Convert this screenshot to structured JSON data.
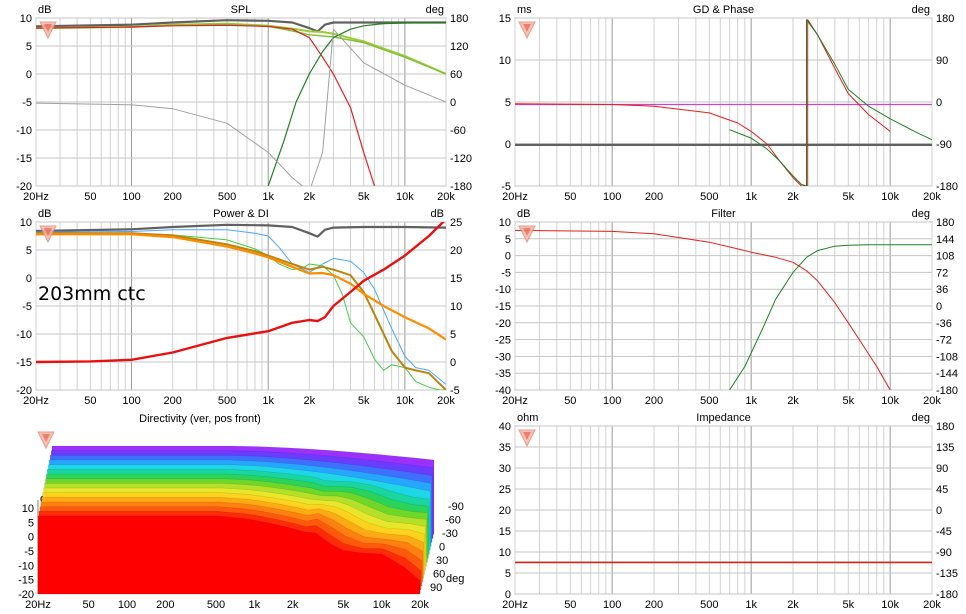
{
  "chart_data": [
    {
      "id": "spl",
      "type": "line",
      "title": "SPL",
      "ylabel": "dB",
      "y2label": "deg",
      "xscale": "log",
      "xlim": [
        20,
        20000
      ],
      "ylim": [
        -20,
        10
      ],
      "y2lim": [
        -180,
        180
      ],
      "xticks": [
        "20Hz",
        "50",
        "100",
        "200",
        "500",
        "1k",
        "2k",
        "5k",
        "10k",
        "20k"
      ],
      "yticks": [
        "10",
        "5",
        "0",
        "-5",
        "-10",
        "-15",
        "-20"
      ],
      "y2ticks": [
        "180",
        "120",
        "60",
        "0",
        "-60",
        "-120",
        "-180"
      ],
      "series": [
        {
          "color": "#606060",
          "width": 2.2,
          "x": [
            20,
            100,
            200,
            500,
            1000,
            1500,
            2000,
            2300,
            2600,
            3000,
            5000,
            10000,
            20000
          ],
          "y": [
            8.5,
            8.8,
            9.2,
            9.6,
            9.5,
            9.2,
            8.2,
            7.6,
            8.8,
            9.2,
            9.2,
            9.2,
            9.2
          ]
        },
        {
          "color": "#9acd32",
          "width": 2.0,
          "x": [
            20,
            100,
            200,
            500,
            1000,
            1500,
            2000,
            2500,
            3000,
            5000,
            10000,
            20000
          ],
          "y": [
            8.2,
            8.4,
            8.8,
            9.0,
            8.6,
            8.1,
            7.6,
            7.5,
            7.2,
            5.8,
            3.2,
            0
          ]
        },
        {
          "color": "#7fbf3a",
          "width": 1.4,
          "x": [
            20,
            100,
            200,
            500,
            1000,
            1300,
            1700,
            2000,
            2500,
            3000,
            5000,
            10000,
            20000
          ],
          "y": [
            8.2,
            8.4,
            8.7,
            8.9,
            8.5,
            8.0,
            7.4,
            7.0,
            6.8,
            6.6,
            5.6,
            3.0,
            0
          ]
        },
        {
          "color": "#e02020",
          "width": 1.2,
          "x": [
            20,
            100,
            200,
            500,
            1000,
            1500,
            2000,
            2500,
            3000,
            4000,
            5000,
            6000
          ],
          "y": [
            8.2,
            8.4,
            8.6,
            8.7,
            8.5,
            8.0,
            6.5,
            3.0,
            0,
            -6,
            -14,
            -20
          ]
        },
        {
          "color": "#208020",
          "width": 1.2,
          "x": [
            1000,
            1300,
            1600,
            2000,
            2500,
            3000,
            4000,
            5000,
            7000,
            10000,
            20000
          ],
          "y": [
            -20,
            -12,
            -5,
            0,
            4,
            6.5,
            8.0,
            8.6,
            9.0,
            9.1,
            9.2
          ]
        },
        {
          "color": "#a0a0a0",
          "width": 1.0,
          "x": [
            20,
            100,
            200,
            500,
            1000,
            1500,
            2000,
            2500,
            3000,
            5000,
            10000,
            20000
          ],
          "y": [
            -5.2,
            -5.5,
            -6.2,
            -8.8,
            -14,
            -18.5,
            -21,
            -14,
            8,
            2,
            -2,
            -5
          ]
        }
      ]
    },
    {
      "id": "power_di",
      "type": "line",
      "title": "Power & DI",
      "ylabel": "dB",
      "y2label": "dB",
      "xscale": "log",
      "xlim": [
        20,
        20000
      ],
      "ylim": [
        -20,
        10
      ],
      "y2lim": [
        -5,
        25
      ],
      "xticks": [
        "20Hz",
        "50",
        "100",
        "200",
        "500",
        "1k",
        "2k",
        "5k",
        "10k",
        "20k"
      ],
      "yticks": [
        "10",
        "5",
        "0",
        "-5",
        "-10",
        "-15",
        "-20"
      ],
      "y2ticks": [
        "25",
        "20",
        "15",
        "10",
        "5",
        "0",
        "-5"
      ],
      "series": [
        {
          "color": "#606060",
          "width": 2.2,
          "x": [
            20,
            100,
            200,
            500,
            1000,
            1500,
            2000,
            2300,
            2600,
            3000,
            5000,
            10000,
            20000
          ],
          "y": [
            8.4,
            8.7,
            9.1,
            9.5,
            9.4,
            9.1,
            8.0,
            7.4,
            8.6,
            9.0,
            9.1,
            9.1,
            9.0
          ]
        },
        {
          "color": "#4da6ff",
          "width": 1.0,
          "x": [
            20,
            100,
            200,
            500,
            800,
            1000,
            1200,
            1500,
            2000,
            2500,
            3000,
            4000,
            5000,
            6000,
            8000,
            10000,
            12000,
            15000,
            20000
          ],
          "y": [
            8.2,
            8.3,
            8.6,
            8.6,
            8.0,
            7.5,
            5.5,
            2.5,
            1.0,
            2.5,
            3.5,
            3.0,
            1.0,
            -2.0,
            -9.0,
            -14.0,
            -16.0,
            -16.5,
            -19.0
          ]
        },
        {
          "color": "#44cc44",
          "width": 1.0,
          "x": [
            20,
            100,
            200,
            500,
            800,
            1000,
            1200,
            1500,
            1800,
            2000,
            2500,
            3000,
            3500,
            4000,
            5000,
            6000,
            7000,
            8000,
            10000,
            12000,
            15000,
            18000,
            20000
          ],
          "y": [
            8.0,
            8.0,
            7.7,
            6.8,
            5.2,
            4.0,
            2.5,
            1.5,
            1.8,
            2.5,
            2.2,
            0.5,
            -3.0,
            -8.0,
            -10.5,
            -14.5,
            -16.5,
            -15.5,
            -16.0,
            -18.5,
            -19.5,
            -20,
            -20
          ]
        },
        {
          "color": "#b8860b",
          "width": 2.0,
          "x": [
            20,
            100,
            200,
            500,
            800,
            1000,
            1500,
            2000,
            2500,
            3000,
            4000,
            5000,
            6000,
            8000,
            10000,
            12000,
            15000,
            20000
          ],
          "y": [
            8.0,
            8.0,
            7.6,
            6.0,
            4.8,
            4.0,
            2.5,
            1.5,
            2.0,
            1.5,
            0.5,
            -2.5,
            -6.5,
            -13.0,
            -16.0,
            -16.5,
            -17.0,
            -20
          ]
        },
        {
          "color": "#ff8c00",
          "width": 2.2,
          "x": [
            20,
            100,
            200,
            500,
            800,
            1000,
            1500,
            2000,
            2500,
            3000,
            4000,
            5000,
            7000,
            10000,
            15000,
            20000
          ],
          "y": [
            7.8,
            7.8,
            7.3,
            5.6,
            4.4,
            3.7,
            2.0,
            0.8,
            0.9,
            0.5,
            -1.0,
            -2.8,
            -5.0,
            -7.0,
            -9.0,
            -11.0
          ]
        },
        {
          "color": "#e81010",
          "width": 2.4,
          "x": [
            20,
            50,
            100,
            200,
            500,
            1000,
            1500,
            2000,
            2300,
            2600,
            3000,
            4000,
            5000,
            7000,
            10000,
            15000,
            20000
          ],
          "y": [
            -15.0,
            -14.9,
            -14.6,
            -13.3,
            -10.7,
            -9.5,
            -8.0,
            -7.5,
            -7.7,
            -7.0,
            -5.0,
            -2.5,
            -0.5,
            1.5,
            4.0,
            7.5,
            10.5
          ]
        }
      ]
    },
    {
      "id": "gd_phase",
      "type": "line",
      "title": "GD & Phase",
      "ylabel": "ms",
      "y2label": "deg",
      "xscale": "log",
      "xlim": [
        20,
        20000
      ],
      "ylim": [
        -5,
        15
      ],
      "y2lim": [
        -180,
        180
      ],
      "xticks": [
        "20Hz",
        "50",
        "100",
        "200",
        "500",
        "1k",
        "2k",
        "5k",
        "10k",
        "20k"
      ],
      "yticks": [
        "15",
        "10",
        "5",
        "0",
        "-5"
      ],
      "y2ticks": [
        "180",
        "90",
        "0",
        "-90",
        "-180"
      ],
      "series": [
        {
          "color": "#606060",
          "width": 2.4,
          "x": [
            20,
            100,
            500,
            1000,
            2000,
            5000,
            20000
          ],
          "y": [
            -0.1,
            -0.1,
            -0.1,
            -0.1,
            -0.1,
            -0.1,
            -0.1
          ]
        },
        {
          "color": "#cc44cc",
          "width": 1.2,
          "x": [
            20,
            20000
          ],
          "y": [
            4.7,
            4.7
          ]
        },
        {
          "color": "#e02020",
          "width": 1.0,
          "x": [
            20,
            100,
            200,
            500,
            800,
            1000,
            1300,
            1600,
            2000,
            2300,
            2550,
            2551,
            3000,
            4000,
            5000,
            7000,
            10000
          ],
          "y": [
            4.8,
            4.7,
            4.5,
            3.7,
            2.5,
            1.5,
            0,
            -2.0,
            -4.0,
            -5.0,
            -5.0,
            14.8,
            13.0,
            9.0,
            6.0,
            3.5,
            1.5
          ]
        },
        {
          "color": "#208020",
          "width": 1.0,
          "x": [
            700,
            1000,
            1300,
            1600,
            2000,
            2300,
            2500,
            2501,
            3000,
            4000,
            5000,
            7000,
            10000,
            15000,
            20000
          ],
          "y": [
            1.7,
            0.7,
            -0.6,
            -2.0,
            -3.8,
            -4.8,
            -5.0,
            14.8,
            13.0,
            9.5,
            6.5,
            4.5,
            3.0,
            1.5,
            0.5
          ]
        }
      ]
    },
    {
      "id": "filter",
      "type": "line",
      "title": "Filter",
      "ylabel": "dB",
      "y2label": "deg",
      "xscale": "log",
      "xlim": [
        20,
        20000
      ],
      "ylim": [
        -40,
        10
      ],
      "y2lim": [
        -180,
        180
      ],
      "xticks": [
        "20Hz",
        "50",
        "100",
        "200",
        "500",
        "1k",
        "2k",
        "5k",
        "10k",
        "20k"
      ],
      "yticks": [
        "10",
        "5",
        "0",
        "-5",
        "-10",
        "-15",
        "-20",
        "-25",
        "-30",
        "-35",
        "-40"
      ],
      "y2ticks": [
        "180",
        "144",
        "108",
        "72",
        "36",
        "0",
        "-36",
        "-72",
        "-108",
        "-144",
        "-180"
      ],
      "series": [
        {
          "color": "#e02020",
          "width": 1.0,
          "x": [
            20,
            100,
            200,
            500,
            800,
            1000,
            1500,
            2000,
            2500,
            3000,
            4000,
            5000,
            6000,
            8000,
            10000
          ],
          "y": [
            7.5,
            7.2,
            6.5,
            4.0,
            2.0,
            1.0,
            -0.5,
            -2.0,
            -4.5,
            -7.5,
            -14,
            -20,
            -25,
            -33,
            -40
          ]
        },
        {
          "color": "#208020",
          "width": 1.0,
          "x": [
            700,
            900,
            1200,
            1500,
            2000,
            2500,
            3000,
            4000,
            5000,
            7000,
            10000,
            20000
          ],
          "y": [
            -40,
            -33,
            -22,
            -13,
            -5,
            -0.5,
            1.5,
            2.8,
            3.1,
            3.2,
            3.2,
            3.2
          ]
        }
      ]
    },
    {
      "id": "impedance",
      "type": "line",
      "title": "Impedance",
      "ylabel": "ohm",
      "y2label": "deg",
      "xscale": "log",
      "xlim": [
        20,
        20000
      ],
      "ylim": [
        0,
        40
      ],
      "y2lim": [
        -180,
        180
      ],
      "xticks": [
        "20Hz",
        "50",
        "100",
        "200",
        "500",
        "1k",
        "2k",
        "5k",
        "10k",
        "20k"
      ],
      "yticks": [
        "40",
        "35",
        "30",
        "25",
        "20",
        "15",
        "10",
        "5",
        "0"
      ],
      "y2ticks": [
        "180",
        "135",
        "90",
        "45",
        "0",
        "-45",
        "-90",
        "-135",
        "-180"
      ],
      "series": [
        {
          "color": "#208020",
          "width": 1.0,
          "x": [
            20,
            20000
          ],
          "y": [
            7.6,
            7.6
          ]
        },
        {
          "color": "#e02020",
          "width": 1.4,
          "x": [
            20,
            20000
          ],
          "y": [
            7.5,
            7.5
          ]
        }
      ]
    },
    {
      "id": "directivity",
      "type": "area",
      "title": "Directivity (ver, pos front)",
      "ylabel": "dB",
      "xscale": "log",
      "xlim": [
        20,
        20000
      ],
      "ylim": [
        -20,
        10
      ],
      "xticks": [
        "20Hz",
        "50",
        "100",
        "200",
        "500",
        "1k",
        "2k",
        "5k",
        "10k",
        "20k"
      ],
      "yticks": [
        "10",
        "5",
        "0",
        "-5",
        "-10",
        "-15",
        "-20"
      ],
      "angle_label": "deg",
      "angle_ticks": [
        "-90",
        "-60",
        "-30",
        "0",
        "30",
        "60",
        "90"
      ]
    }
  ],
  "annotation": "203mm ctc"
}
